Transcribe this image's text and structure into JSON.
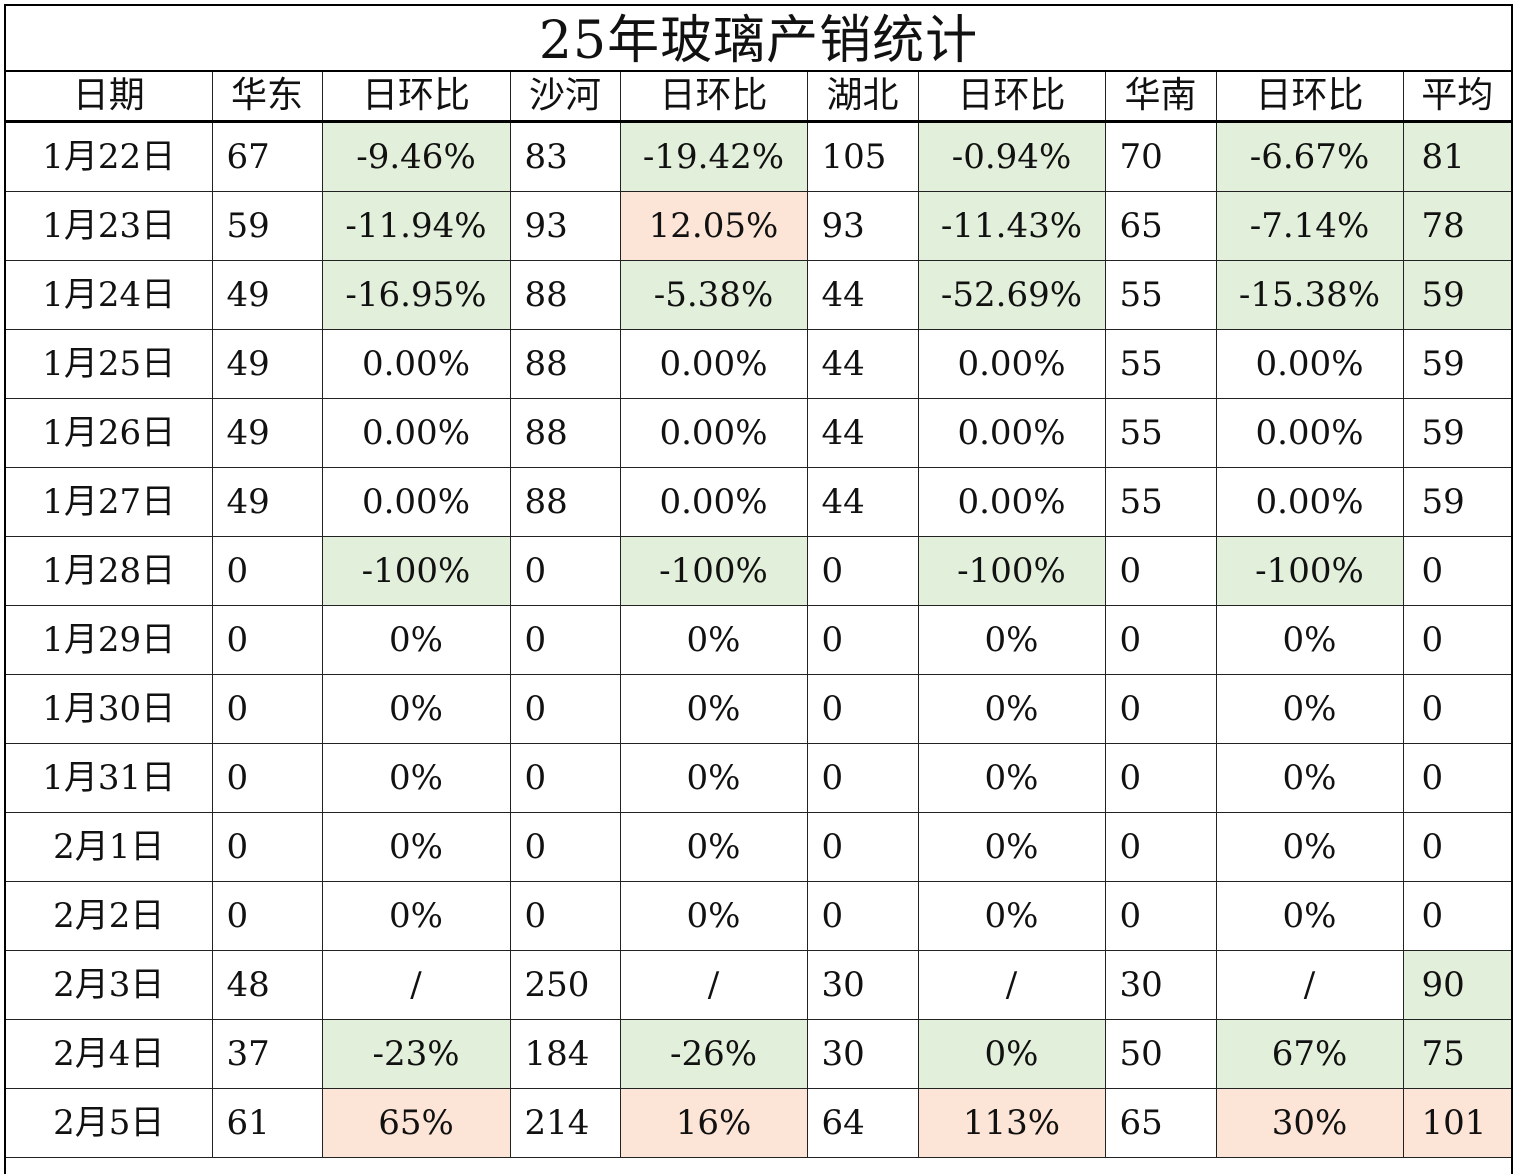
{
  "title": "25年玻璃产销统计",
  "headers": [
    "日期",
    "华东",
    "日环比",
    "沙河",
    "日环比",
    "湖北",
    "日环比",
    "华南",
    "日环比",
    "平均"
  ],
  "colors": {
    "green": "#e2efda",
    "red": "#fce4d6"
  },
  "rows": [
    {
      "date": "1月22日",
      "cells": [
        {
          "v": "67"
        },
        {
          "v": "-9.46%",
          "c": "green"
        },
        {
          "v": "83"
        },
        {
          "v": "-19.42%",
          "c": "green"
        },
        {
          "v": "105"
        },
        {
          "v": "-0.94%",
          "c": "green"
        },
        {
          "v": "70"
        },
        {
          "v": "-6.67%",
          "c": "green"
        },
        {
          "v": "81",
          "c": "green"
        }
      ]
    },
    {
      "date": "1月23日",
      "cells": [
        {
          "v": "59"
        },
        {
          "v": "-11.94%",
          "c": "green"
        },
        {
          "v": "93"
        },
        {
          "v": "12.05%",
          "c": "red"
        },
        {
          "v": "93"
        },
        {
          "v": "-11.43%",
          "c": "green"
        },
        {
          "v": "65"
        },
        {
          "v": "-7.14%",
          "c": "green"
        },
        {
          "v": "78",
          "c": "green"
        }
      ]
    },
    {
      "date": "1月24日",
      "cells": [
        {
          "v": "49"
        },
        {
          "v": "-16.95%",
          "c": "green"
        },
        {
          "v": "88"
        },
        {
          "v": "-5.38%",
          "c": "green"
        },
        {
          "v": "44"
        },
        {
          "v": "-52.69%",
          "c": "green"
        },
        {
          "v": "55"
        },
        {
          "v": "-15.38%",
          "c": "green"
        },
        {
          "v": "59",
          "c": "green"
        }
      ]
    },
    {
      "date": "1月25日",
      "cells": [
        {
          "v": "49"
        },
        {
          "v": "0.00%"
        },
        {
          "v": "88"
        },
        {
          "v": "0.00%"
        },
        {
          "v": "44"
        },
        {
          "v": "0.00%"
        },
        {
          "v": "55"
        },
        {
          "v": "0.00%"
        },
        {
          "v": "59"
        }
      ]
    },
    {
      "date": "1月26日",
      "cells": [
        {
          "v": "49"
        },
        {
          "v": "0.00%"
        },
        {
          "v": "88"
        },
        {
          "v": "0.00%"
        },
        {
          "v": "44"
        },
        {
          "v": "0.00%"
        },
        {
          "v": "55"
        },
        {
          "v": "0.00%"
        },
        {
          "v": "59"
        }
      ]
    },
    {
      "date": "1月27日",
      "cells": [
        {
          "v": "49"
        },
        {
          "v": "0.00%"
        },
        {
          "v": "88"
        },
        {
          "v": "0.00%"
        },
        {
          "v": "44"
        },
        {
          "v": "0.00%"
        },
        {
          "v": "55"
        },
        {
          "v": "0.00%"
        },
        {
          "v": "59"
        }
      ]
    },
    {
      "date": "1月28日",
      "cells": [
        {
          "v": "0"
        },
        {
          "v": "-100%",
          "c": "green"
        },
        {
          "v": "0"
        },
        {
          "v": "-100%",
          "c": "green"
        },
        {
          "v": "0"
        },
        {
          "v": "-100%",
          "c": "green"
        },
        {
          "v": "0"
        },
        {
          "v": "-100%",
          "c": "green"
        },
        {
          "v": "0"
        }
      ]
    },
    {
      "date": "1月29日",
      "cells": [
        {
          "v": "0"
        },
        {
          "v": "0%"
        },
        {
          "v": "0"
        },
        {
          "v": "0%"
        },
        {
          "v": "0"
        },
        {
          "v": "0%"
        },
        {
          "v": "0"
        },
        {
          "v": "0%"
        },
        {
          "v": "0"
        }
      ]
    },
    {
      "date": "1月30日",
      "cells": [
        {
          "v": "0"
        },
        {
          "v": "0%"
        },
        {
          "v": "0"
        },
        {
          "v": "0%"
        },
        {
          "v": "0"
        },
        {
          "v": "0%"
        },
        {
          "v": "0"
        },
        {
          "v": "0%"
        },
        {
          "v": "0"
        }
      ]
    },
    {
      "date": "1月31日",
      "cells": [
        {
          "v": "0"
        },
        {
          "v": "0%"
        },
        {
          "v": "0"
        },
        {
          "v": "0%"
        },
        {
          "v": "0"
        },
        {
          "v": "0%"
        },
        {
          "v": "0"
        },
        {
          "v": "0%"
        },
        {
          "v": "0"
        }
      ]
    },
    {
      "date": "2月1日",
      "cells": [
        {
          "v": "0"
        },
        {
          "v": "0%"
        },
        {
          "v": "0"
        },
        {
          "v": "0%"
        },
        {
          "v": "0"
        },
        {
          "v": "0%"
        },
        {
          "v": "0"
        },
        {
          "v": "0%"
        },
        {
          "v": "0"
        }
      ]
    },
    {
      "date": "2月2日",
      "cells": [
        {
          "v": "0"
        },
        {
          "v": "0%"
        },
        {
          "v": "0"
        },
        {
          "v": "0%"
        },
        {
          "v": "0"
        },
        {
          "v": "0%"
        },
        {
          "v": "0"
        },
        {
          "v": "0%"
        },
        {
          "v": "0"
        }
      ]
    },
    {
      "date": "2月3日",
      "cells": [
        {
          "v": "48"
        },
        {
          "v": "/"
        },
        {
          "v": "250"
        },
        {
          "v": "/"
        },
        {
          "v": "30"
        },
        {
          "v": "/"
        },
        {
          "v": "30"
        },
        {
          "v": "/"
        },
        {
          "v": "90",
          "c": "green"
        }
      ]
    },
    {
      "date": "2月4日",
      "cells": [
        {
          "v": "37"
        },
        {
          "v": "-23%",
          "c": "green"
        },
        {
          "v": "184"
        },
        {
          "v": "-26%",
          "c": "green"
        },
        {
          "v": "30"
        },
        {
          "v": "0%",
          "c": "green"
        },
        {
          "v": "50"
        },
        {
          "v": "67%",
          "c": "green"
        },
        {
          "v": "75",
          "c": "green"
        }
      ]
    },
    {
      "date": "2月5日",
      "cells": [
        {
          "v": "61"
        },
        {
          "v": "65%",
          "c": "red"
        },
        {
          "v": "214"
        },
        {
          "v": "16%",
          "c": "red"
        },
        {
          "v": "64"
        },
        {
          "v": "113%",
          "c": "red"
        },
        {
          "v": "65"
        },
        {
          "v": "30%",
          "c": "red"
        },
        {
          "v": "101",
          "c": "red"
        }
      ]
    }
  ]
}
